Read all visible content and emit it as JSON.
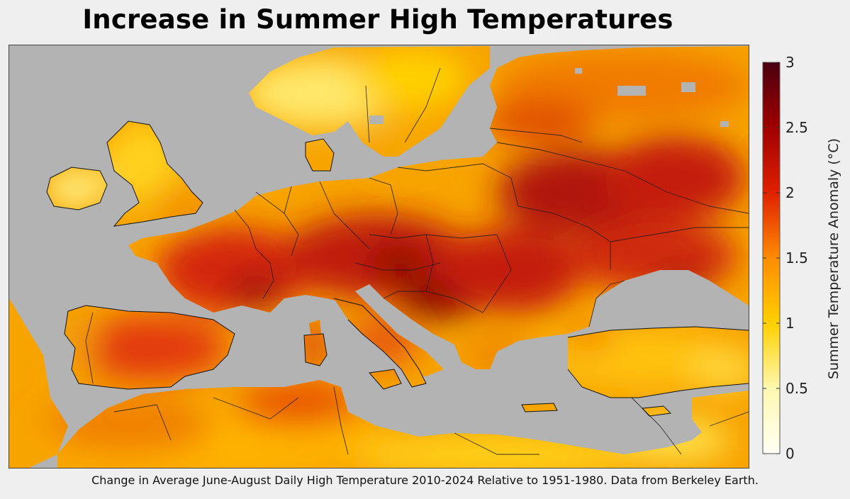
{
  "title": "Increase in Summer High Temperatures",
  "caption": "Change in Average June-August Daily High Temperature 2010-2024 Relative to 1951-1980.  Data from Berkeley Earth.",
  "colorbar": {
    "label": "Summer Temperature Anomaly (°C)",
    "min": 0,
    "max": 3,
    "ticks": [
      "0",
      "0.5",
      "1",
      "1.5",
      "2",
      "2.5",
      "3"
    ],
    "stops": [
      "#fffff5",
      "#fff8b0",
      "#ffd000",
      "#ff8c00",
      "#e02000",
      "#a00000",
      "#4a0010"
    ]
  },
  "map": {
    "region": "Europe, North Africa and the Mediterranean",
    "ocean_color": "#b3b3b3",
    "border_color": "#1a1a1a"
  }
}
